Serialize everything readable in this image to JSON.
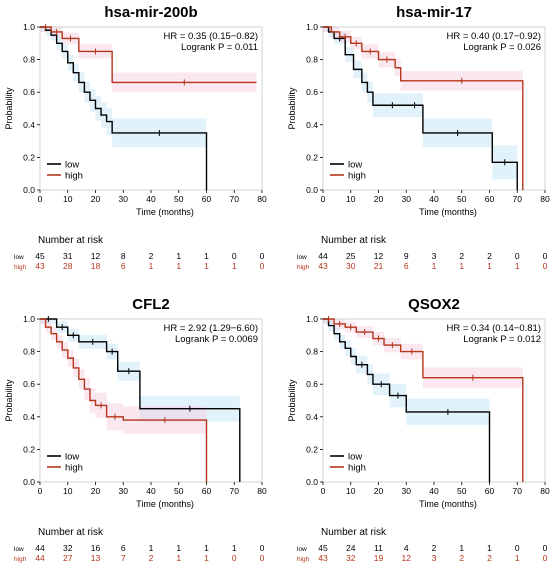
{
  "colors": {
    "low": "#000000",
    "high": "#b5361a",
    "ci_low": "#bfe3f6",
    "ci_high": "#f6c9dc"
  },
  "chart_data": [
    {
      "type": "line",
      "title": "hsa-mir-200b",
      "annotation_hr": "HR = 0.35 (0.15−0.82)",
      "annotation_p": "Logrank P = 0.011",
      "xlabel": "Time (months)",
      "ylabel": "Probability",
      "xlim": [
        0,
        80
      ],
      "ylim": [
        0,
        1
      ],
      "xticks": [
        "0",
        "10",
        "20",
        "30",
        "40",
        "50",
        "60",
        "70",
        "80"
      ],
      "yticks": [
        "0.0",
        "0.2",
        "0.4",
        "0.6",
        "0.8",
        "1.0"
      ],
      "legend_position": "bottom-left",
      "series": [
        {
          "name": "low",
          "x": [
            0,
            2,
            4,
            6,
            8,
            10,
            12,
            14,
            16,
            18,
            20,
            22,
            24,
            26,
            60
          ],
          "y": [
            1.0,
            0.98,
            0.95,
            0.9,
            0.85,
            0.78,
            0.72,
            0.66,
            0.6,
            0.55,
            0.5,
            0.46,
            0.42,
            0.35,
            0.0
          ]
        },
        {
          "name": "high",
          "x": [
            0,
            4,
            8,
            14,
            26,
            78
          ],
          "y": [
            1.0,
            0.97,
            0.93,
            0.85,
            0.66,
            0.66
          ]
        }
      ],
      "risk_header": "Number at risk",
      "risk_x": [
        0,
        10,
        20,
        30,
        40,
        50,
        60,
        70,
        80
      ],
      "risk_table": [
        {
          "label": "low",
          "values": [
            "45",
            "31",
            "12",
            "8",
            "2",
            "1",
            "1",
            "0",
            "0"
          ]
        },
        {
          "label": "high",
          "values": [
            "43",
            "28",
            "18",
            "6",
            "1",
            "1",
            "1",
            "1",
            "0"
          ]
        }
      ]
    },
    {
      "type": "line",
      "title": "hsa-mir-17",
      "annotation_hr": "HR = 0.40 (0.17−0.92)",
      "annotation_p": "Logrank P = 0.026",
      "xlabel": "Time (months)",
      "ylabel": "Probability",
      "xlim": [
        0,
        80
      ],
      "ylim": [
        0,
        1
      ],
      "xticks": [
        "0",
        "10",
        "20",
        "30",
        "40",
        "50",
        "60",
        "70",
        "80"
      ],
      "yticks": [
        "0.0",
        "0.2",
        "0.4",
        "0.6",
        "0.8",
        "1.0"
      ],
      "legend_position": "bottom-left",
      "series": [
        {
          "name": "low",
          "x": [
            0,
            2,
            4,
            8,
            11,
            14,
            16,
            18,
            20,
            30,
            36,
            61,
            70
          ],
          "y": [
            1.0,
            0.97,
            0.93,
            0.83,
            0.74,
            0.66,
            0.6,
            0.52,
            0.52,
            0.52,
            0.35,
            0.17,
            0.0
          ]
        },
        {
          "name": "high",
          "x": [
            0,
            3,
            6,
            10,
            14,
            20,
            26,
            28,
            72
          ],
          "y": [
            1.0,
            0.97,
            0.94,
            0.9,
            0.85,
            0.8,
            0.75,
            0.67,
            0.0
          ]
        }
      ],
      "risk_header": "Number at risk",
      "risk_x": [
        0,
        10,
        20,
        30,
        40,
        50,
        60,
        70,
        80
      ],
      "risk_table": [
        {
          "label": "low",
          "values": [
            "44",
            "25",
            "12",
            "9",
            "3",
            "2",
            "2",
            "0",
            "0"
          ]
        },
        {
          "label": "high",
          "values": [
            "43",
            "30",
            "21",
            "6",
            "1",
            "1",
            "1",
            "1",
            "0"
          ]
        }
      ]
    },
    {
      "type": "line",
      "title": "CFL2",
      "annotation_hr": "HR = 2.92 (1.29−6.60)",
      "annotation_p": "Logrank P = 0.0069",
      "xlabel": "Time (months)",
      "ylabel": "Probability",
      "xlim": [
        0,
        80
      ],
      "ylim": [
        0,
        1
      ],
      "xticks": [
        "0",
        "10",
        "20",
        "30",
        "40",
        "50",
        "60",
        "70",
        "80"
      ],
      "yticks": [
        "0.0",
        "0.2",
        "0.4",
        "0.6",
        "0.8",
        "1.0"
      ],
      "legend_position": "bottom-left",
      "series": [
        {
          "name": "low",
          "x": [
            0,
            6,
            10,
            14,
            24,
            28,
            36,
            72
          ],
          "y": [
            1.0,
            0.95,
            0.9,
            0.86,
            0.8,
            0.68,
            0.45,
            0.0
          ]
        },
        {
          "name": "high",
          "x": [
            0,
            2,
            4,
            6,
            8,
            10,
            12,
            14,
            16,
            18,
            20,
            24,
            30,
            60
          ],
          "y": [
            1.0,
            0.95,
            0.91,
            0.86,
            0.81,
            0.76,
            0.7,
            0.63,
            0.57,
            0.5,
            0.47,
            0.4,
            0.38,
            0.0
          ]
        }
      ],
      "risk_header": "Number at risk",
      "risk_x": [
        0,
        10,
        20,
        30,
        40,
        50,
        60,
        70,
        80
      ],
      "risk_table": [
        {
          "label": "low",
          "values": [
            "44",
            "32",
            "16",
            "6",
            "1",
            "1",
            "1",
            "1",
            "0"
          ]
        },
        {
          "label": "high",
          "values": [
            "44",
            "27",
            "13",
            "7",
            "2",
            "1",
            "1",
            "0",
            "0"
          ]
        }
      ]
    },
    {
      "type": "line",
      "title": "QSOX2",
      "annotation_hr": "HR = 0.34 (0.14−0.81)",
      "annotation_p": "Logrank P = 0.012",
      "xlabel": "Time (months)",
      "ylabel": "Probability",
      "xlim": [
        0,
        80
      ],
      "ylim": [
        0,
        1
      ],
      "xticks": [
        "0",
        "10",
        "20",
        "30",
        "40",
        "50",
        "60",
        "70",
        "80"
      ],
      "yticks": [
        "0.0",
        "0.2",
        "0.4",
        "0.6",
        "0.8",
        "1.0"
      ],
      "legend_position": "bottom-left",
      "series": [
        {
          "name": "low",
          "x": [
            0,
            2,
            4,
            6,
            8,
            10,
            12,
            16,
            18,
            24,
            30,
            60
          ],
          "y": [
            1.0,
            0.96,
            0.91,
            0.86,
            0.82,
            0.77,
            0.72,
            0.66,
            0.6,
            0.53,
            0.43,
            0.0
          ]
        },
        {
          "name": "high",
          "x": [
            0,
            4,
            8,
            12,
            18,
            22,
            28,
            36,
            72
          ],
          "y": [
            1.0,
            0.97,
            0.95,
            0.92,
            0.88,
            0.84,
            0.8,
            0.64,
            0.0
          ]
        }
      ],
      "risk_header": "Number at risk",
      "risk_x": [
        0,
        10,
        20,
        30,
        40,
        50,
        60,
        70,
        80
      ],
      "risk_table": [
        {
          "label": "low",
          "values": [
            "45",
            "24",
            "11",
            "4",
            "2",
            "1",
            "1",
            "0",
            "0"
          ]
        },
        {
          "label": "high",
          "values": [
            "43",
            "32",
            "19",
            "12",
            "3",
            "2",
            "2",
            "1",
            "0"
          ]
        }
      ]
    }
  ]
}
